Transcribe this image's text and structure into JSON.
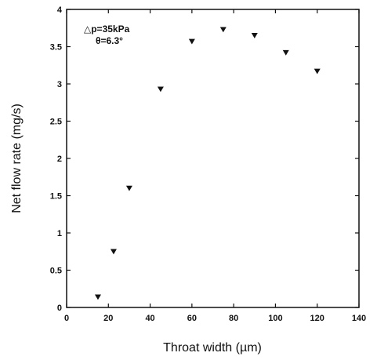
{
  "chart_data": {
    "type": "scatter",
    "xlabel": "Throat width (µm)",
    "ylabel": "Net flow rate (mg/s)",
    "xlim": [
      0,
      140
    ],
    "ylim": [
      0,
      4
    ],
    "xticks": [
      0,
      20,
      40,
      60,
      80,
      100,
      120,
      140
    ],
    "yticks": [
      0,
      0.5,
      1,
      1.5,
      2,
      2.5,
      3,
      3.5,
      4
    ],
    "xtick_labels": [
      "0",
      "20",
      "40",
      "60",
      "80",
      "100",
      "120",
      "140"
    ],
    "ytick_labels": [
      "0",
      "0.5",
      "1",
      "1.5",
      "2",
      "2.5",
      "3",
      "3.5",
      "4"
    ],
    "grid": false,
    "marker": "downward-triangle",
    "marker_color": "#111111",
    "annotations": [
      "△p=35kPa",
      "θ=6.3°"
    ],
    "series": [
      {
        "x": [
          15,
          22.5,
          30,
          45,
          60,
          75,
          90,
          105,
          120
        ],
        "y": [
          0.14,
          0.75,
          1.6,
          2.93,
          3.57,
          3.73,
          3.65,
          3.42,
          3.17
        ]
      }
    ]
  }
}
